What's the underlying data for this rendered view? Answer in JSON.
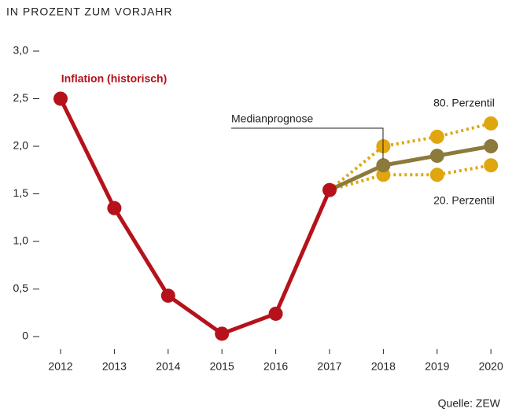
{
  "chart_data": {
    "type": "line",
    "title": "IN PROZENT ZUM VORJAHR",
    "source": "Quelle: ZEW",
    "categories": [
      "2012",
      "2013",
      "2014",
      "2015",
      "2016",
      "2017",
      "2018",
      "2019",
      "2020"
    ],
    "ylim": [
      0,
      3
    ],
    "yticks": [
      0,
      {
        "value": 0.5,
        "label": "0,5"
      },
      {
        "value": 1,
        "label": "1,0"
      },
      {
        "value": 1.5,
        "label": "1,5"
      },
      {
        "value": 2,
        "label": "2,0"
      },
      {
        "value": 2.5,
        "label": "2,5"
      },
      {
        "value": 3,
        "label": "3,0"
      }
    ],
    "series": [
      {
        "name": "80. Perzentil",
        "color": "#dfa60f",
        "style": "dotted",
        "values": [
          null,
          null,
          null,
          null,
          null,
          1.54,
          2.0,
          2.1,
          2.24
        ]
      },
      {
        "name": "20. Perzentil",
        "color": "#dfa60f",
        "style": "dotted",
        "values": [
          null,
          null,
          null,
          null,
          null,
          1.54,
          1.7,
          1.7,
          1.8
        ]
      },
      {
        "name": "Medianprognose",
        "color": "#8c7a3c",
        "style": "solid",
        "values": [
          null,
          null,
          null,
          null,
          null,
          1.54,
          1.8,
          1.9,
          2.0
        ]
      },
      {
        "name": "Inflation (historisch)",
        "color": "#b5121b",
        "style": "solid",
        "values": [
          2.5,
          1.35,
          0.43,
          0.03,
          0.24,
          1.54,
          null,
          null,
          null
        ]
      }
    ]
  }
}
